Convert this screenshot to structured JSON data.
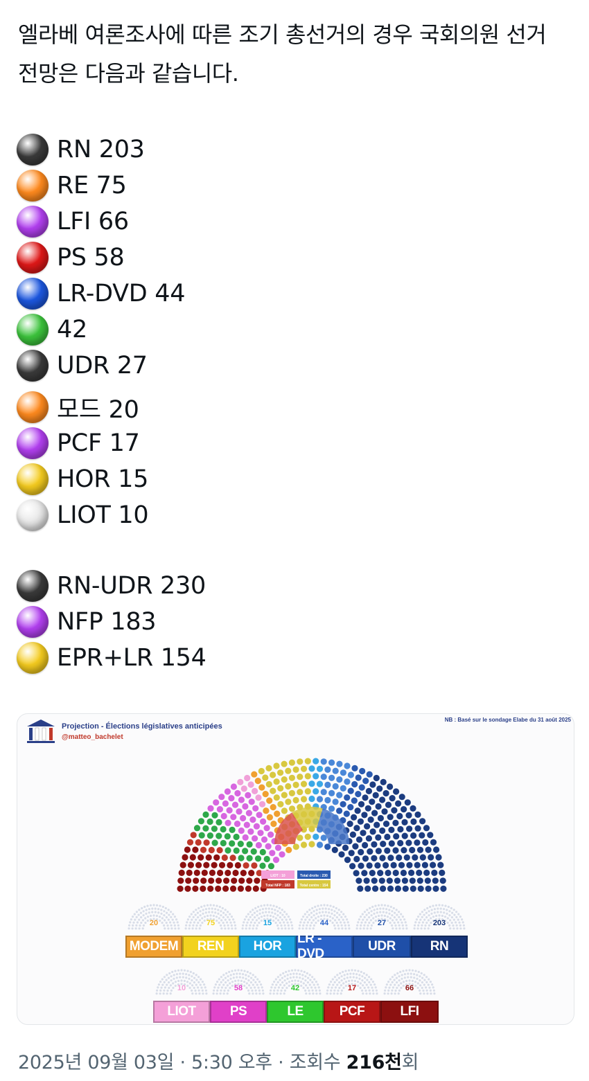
{
  "post": {
    "text": "엘라베 여론조사에 따른 조기 총선거의 경우 국회의원 선거 전망은 다음과 같습니다."
  },
  "parties": [
    {
      "label": "RN 203",
      "color": "#3a3a3a"
    },
    {
      "label": "RE 75",
      "color": "#ff8a1e"
    },
    {
      "label": "LFI 66",
      "color": "#b23ff0"
    },
    {
      "label": "PS 58",
      "color": "#e01818"
    },
    {
      "label": "LR-DVD 44",
      "color": "#1c57e0"
    },
    {
      "label": "42",
      "color": "#3cc43c"
    },
    {
      "label": "UDR 27",
      "color": "#3a3a3a"
    },
    {
      "label": "모드 20",
      "color": "#ff8a1e"
    },
    {
      "label": "PCF 17",
      "color": "#b23ff0"
    },
    {
      "label": "HOR 15",
      "color": "#f5cc1f"
    },
    {
      "label": "LIOT 10",
      "color": "#e8e8e8"
    }
  ],
  "blocs": [
    {
      "label": "RN-UDR 230",
      "color": "#3a3a3a"
    },
    {
      "label": "NFP 183",
      "color": "#b23ff0"
    },
    {
      "label": "EPR+LR 154",
      "color": "#f5cc1f"
    }
  ],
  "image": {
    "title": "Projection - Élections législatives anticipées",
    "handle": "@matteo_bachelet",
    "note": "NB : Basé sur le sondage Elabe du 31 août 2025",
    "totals": [
      "LIOT : 10",
      "Total droite : 230",
      "Total NFP : 183",
      "Total centre : 154"
    ],
    "row1": [
      {
        "name": "MODEM",
        "seats": "20",
        "color": "#f0a030"
      },
      {
        "name": "REN",
        "seats": "75",
        "color": "#f2d21e"
      },
      {
        "name": "HOR",
        "seats": "15",
        "color": "#1aa3e0"
      },
      {
        "name": "LR - DVD",
        "seats": "44",
        "color": "#2a62c8"
      },
      {
        "name": "UDR",
        "seats": "27",
        "color": "#1f4fa8"
      },
      {
        "name": "RN",
        "seats": "203",
        "color": "#163477"
      }
    ],
    "row2": [
      {
        "name": "LIOT",
        "seats": "10",
        "color": "#f4a0d8"
      },
      {
        "name": "PS",
        "seats": "58",
        "color": "#e040c8"
      },
      {
        "name": "LE",
        "seats": "42",
        "color": "#2ec72e"
      },
      {
        "name": "PCF",
        "seats": "17",
        "color": "#b81616"
      },
      {
        "name": "LFI",
        "seats": "66",
        "color": "#8c1010"
      }
    ]
  },
  "meta": {
    "timestamp": "2025년 09월 03일 · 5:30 오후 · 조회수",
    "views": "216천",
    "views_suffix": "회"
  }
}
